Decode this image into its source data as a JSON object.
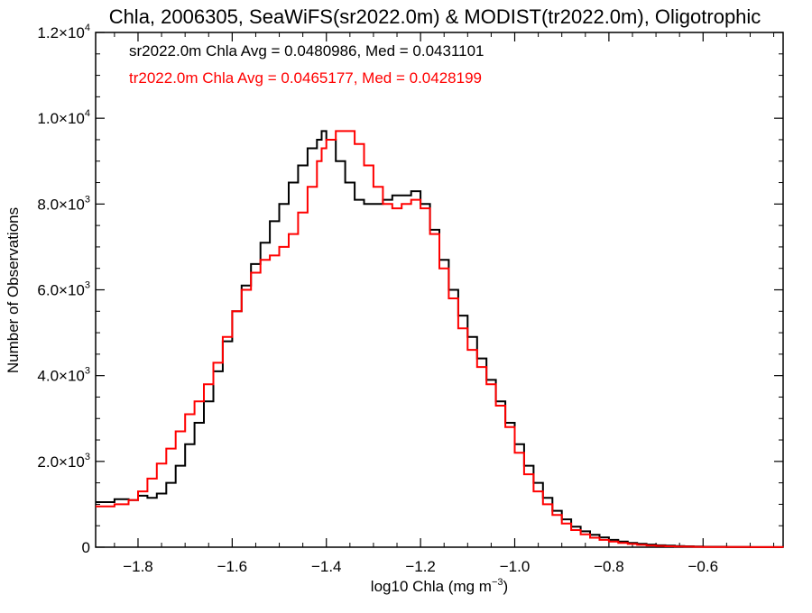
{
  "chart_data": {
    "type": "line",
    "title": "Chla, 2006305, SeaWiFS(sr2022.0m) & MODIST(tr2022.0m), Oligotrophic",
    "xlabel": "log10 Chla (mg m",
    "xlabel_sup": "−3",
    "xlabel_suffix": ")",
    "ylabel": "Number of Observations",
    "xlim": [
      -1.89,
      -0.43
    ],
    "ylim": [
      0,
      12000
    ],
    "x_ticks": [
      -1.8,
      -1.6,
      -1.4,
      -1.2,
      -1.0,
      -0.8,
      -0.6
    ],
    "x_tick_labels": [
      "−1.8",
      "−1.6",
      "−1.4",
      "−1.2",
      "−1.0",
      "−0.8",
      "−0.6"
    ],
    "y_ticks": [
      0,
      2000,
      4000,
      6000,
      8000,
      10000,
      12000
    ],
    "y_tick_labels": [
      {
        "mant": "0",
        "exp": ""
      },
      {
        "mant": "2.0×10",
        "exp": "3"
      },
      {
        "mant": "4.0×10",
        "exp": "3"
      },
      {
        "mant": "6.0×10",
        "exp": "3"
      },
      {
        "mant": "8.0×10",
        "exp": "3"
      },
      {
        "mant": "1.0×10",
        "exp": "4"
      },
      {
        "mant": "1.2×10",
        "exp": "4"
      }
    ],
    "grid": false,
    "step": true,
    "annotations": [
      {
        "text": "sr2022.0m Chla Avg = 0.0480986, Med = 0.0431101",
        "color": "#000000"
      },
      {
        "text": "tr2022.0m Chla Avg = 0.0465177, Med = 0.0428199",
        "color": "#ff0000"
      }
    ],
    "series": [
      {
        "color": "#000000",
        "x": [
          -1.89,
          -1.85,
          -1.82,
          -1.8,
          -1.78,
          -1.76,
          -1.74,
          -1.72,
          -1.7,
          -1.68,
          -1.66,
          -1.64,
          -1.62,
          -1.6,
          -1.58,
          -1.56,
          -1.54,
          -1.52,
          -1.5,
          -1.48,
          -1.46,
          -1.44,
          -1.42,
          -1.41,
          -1.4,
          -1.38,
          -1.36,
          -1.34,
          -1.32,
          -1.3,
          -1.28,
          -1.26,
          -1.24,
          -1.22,
          -1.2,
          -1.18,
          -1.16,
          -1.14,
          -1.12,
          -1.1,
          -1.08,
          -1.06,
          -1.04,
          -1.02,
          -1.0,
          -0.98,
          -0.96,
          -0.94,
          -0.92,
          -0.9,
          -0.88,
          -0.86,
          -0.84,
          -0.82,
          -0.8,
          -0.78,
          -0.76,
          -0.74,
          -0.72,
          -0.7,
          -0.68,
          -0.66,
          -0.64,
          -0.62,
          -0.6,
          -0.55,
          -0.5,
          -0.45,
          -0.43
        ],
        "y": [
          1050,
          1120,
          1100,
          1200,
          1150,
          1250,
          1500,
          1900,
          2400,
          2900,
          3400,
          4100,
          4800,
          5500,
          6100,
          6600,
          7100,
          7600,
          8000,
          8500,
          8900,
          9300,
          9500,
          9700,
          9500,
          9000,
          8500,
          8100,
          8000,
          8000,
          8100,
          8200,
          8200,
          8300,
          8000,
          7400,
          6700,
          6000,
          5400,
          4900,
          4400,
          3900,
          3400,
          2900,
          2400,
          1900,
          1500,
          1150,
          850,
          650,
          480,
          370,
          290,
          230,
          170,
          130,
          100,
          80,
          60,
          45,
          35,
          25,
          20,
          15,
          10,
          5,
          3,
          2,
          1
        ]
      },
      {
        "color": "#ff0000",
        "x": [
          -1.89,
          -1.85,
          -1.82,
          -1.8,
          -1.78,
          -1.76,
          -1.74,
          -1.72,
          -1.7,
          -1.68,
          -1.66,
          -1.64,
          -1.62,
          -1.6,
          -1.58,
          -1.56,
          -1.54,
          -1.52,
          -1.5,
          -1.48,
          -1.46,
          -1.44,
          -1.42,
          -1.41,
          -1.4,
          -1.38,
          -1.36,
          -1.34,
          -1.32,
          -1.3,
          -1.28,
          -1.26,
          -1.24,
          -1.22,
          -1.2,
          -1.18,
          -1.16,
          -1.14,
          -1.12,
          -1.1,
          -1.08,
          -1.06,
          -1.04,
          -1.02,
          -1.0,
          -0.98,
          -0.96,
          -0.94,
          -0.92,
          -0.9,
          -0.88,
          -0.86,
          -0.84,
          -0.82,
          -0.8,
          -0.78,
          -0.76,
          -0.74,
          -0.72,
          -0.7,
          -0.68,
          -0.66,
          -0.64,
          -0.62,
          -0.6,
          -0.55,
          -0.5,
          -0.45,
          -0.43
        ],
        "y": [
          950,
          1000,
          1100,
          1300,
          1600,
          1950,
          2300,
          2700,
          3100,
          3400,
          3800,
          4300,
          4900,
          5500,
          6000,
          6400,
          6700,
          6800,
          7000,
          7300,
          7800,
          8400,
          9000,
          9300,
          9500,
          9700,
          9700,
          9400,
          8900,
          8400,
          8000,
          7900,
          8000,
          8100,
          7900,
          7300,
          6500,
          5800,
          5100,
          4600,
          4200,
          3800,
          3300,
          2800,
          2200,
          1700,
          1300,
          1000,
          750,
          550,
          400,
          300,
          220,
          170,
          130,
          100,
          75,
          55,
          40,
          30,
          22,
          16,
          12,
          9,
          6,
          4,
          3,
          2,
          1
        ]
      }
    ]
  }
}
